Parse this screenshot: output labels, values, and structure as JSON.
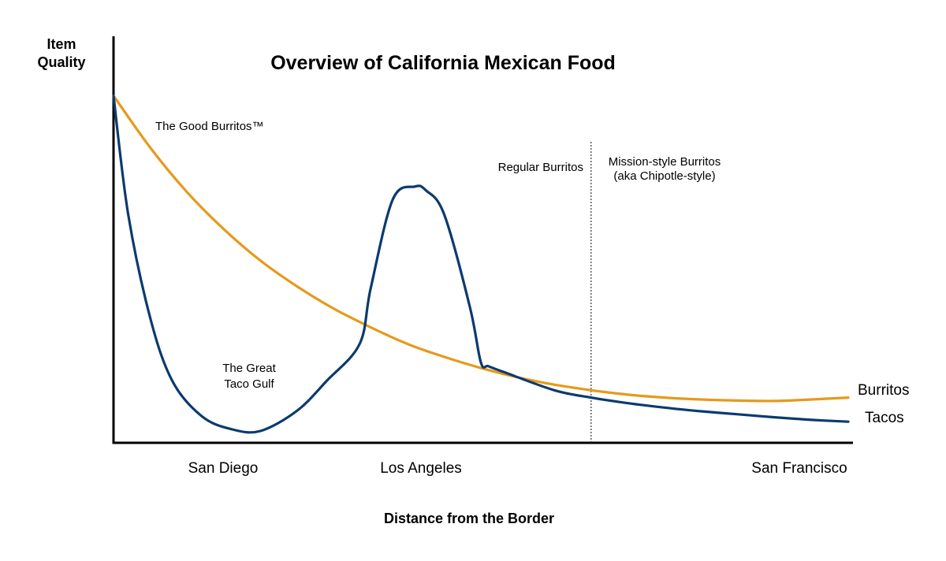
{
  "chart_data": {
    "type": "line",
    "title": "Overview of California Mexican Food",
    "ylabel_lines": [
      "Item",
      "Quality"
    ],
    "xlabel": "Distance from the Border",
    "categories": [
      "San Diego",
      "Los Angeles",
      "San Francisco"
    ],
    "xlim": [
      0,
      100
    ],
    "ylim": [
      0,
      100
    ],
    "grid": false,
    "legend": "right, at line ends",
    "series": [
      {
        "name": "Burritos",
        "color": "#E59A1C",
        "x": [
          0,
          5,
          10,
          15,
          20,
          25,
          30,
          35,
          40,
          45,
          50,
          55,
          60,
          65,
          70,
          75,
          80,
          85,
          90,
          95,
          100
        ],
        "values": [
          92,
          78,
          66,
          56,
          47.5,
          40.5,
          34.5,
          29.5,
          25,
          21.5,
          18.5,
          16,
          14,
          12.5,
          11.3,
          10.5,
          10,
          9.7,
          9.6,
          10,
          10.5
        ]
      },
      {
        "name": "Tacos",
        "color": "#0B3A6F",
        "x": [
          0,
          2,
          5,
          8,
          12,
          16,
          20,
          25,
          29,
          33.5,
          35,
          38,
          41,
          42.5,
          45,
          48.5,
          50,
          51,
          53,
          60,
          65,
          70,
          75,
          80,
          85,
          90,
          95,
          100
        ],
        "values": [
          92,
          60,
          32,
          15,
          5.5,
          2,
          1.5,
          7,
          15,
          25,
          40,
          64,
          67.5,
          66.5,
          60,
          35,
          20,
          19,
          17.5,
          12.5,
          10.5,
          9,
          7.8,
          6.8,
          6,
          5.2,
          4.5,
          4
        ]
      }
    ],
    "annotations": [
      {
        "text": "The Good Burritos™"
      },
      {
        "text": "The Great",
        "text2": "Taco Gulf"
      },
      {
        "text": "Regular Burritos"
      },
      {
        "text": "Mission-style Burritos",
        "text2": "(aka Chipotle-style)"
      }
    ],
    "divider_x": 65
  }
}
